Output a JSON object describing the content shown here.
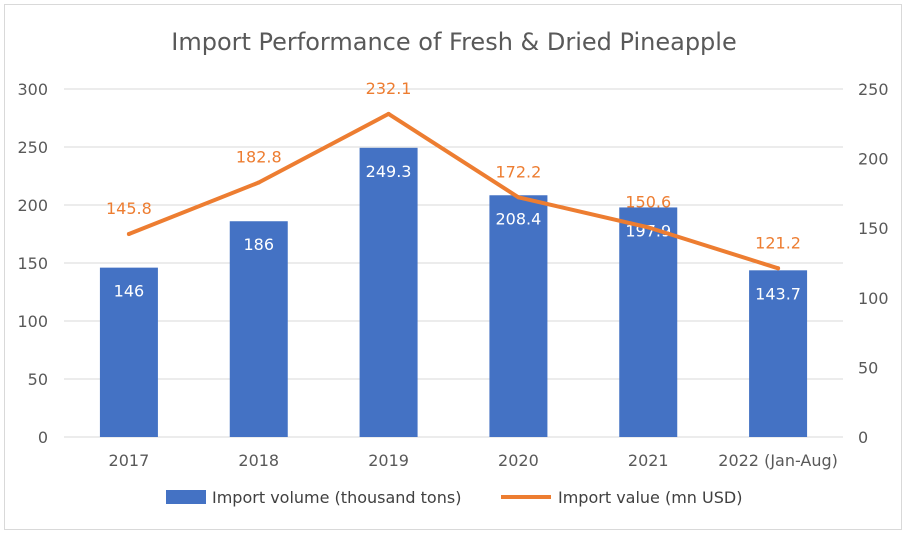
{
  "chart_data": {
    "type": "bar",
    "title": "Import Performance of Fresh & Dried Pineapple",
    "categories": [
      "2017",
      "2018",
      "2019",
      "2020",
      "2021",
      "2022 (Jan-Aug)"
    ],
    "series": [
      {
        "name": "Import volume (thousand tons)",
        "type": "bar",
        "axis": "left",
        "color": "#4472C4",
        "values": [
          146,
          186,
          249.3,
          208.4,
          197.9,
          143.7
        ],
        "labels": [
          "146",
          "186",
          "249.3",
          "208.4",
          "197.9",
          "143.7"
        ]
      },
      {
        "name": "Import value (mn USD)",
        "type": "line",
        "axis": "right",
        "color": "#ED7D31",
        "values": [
          145.8,
          182.8,
          232.1,
          172.2,
          150.6,
          121.2
        ],
        "labels": [
          "145.8",
          "182.8",
          "232.1",
          "172.2",
          "150.6",
          "121.2"
        ]
      }
    ],
    "y_left": {
      "min": 0,
      "max": 300,
      "step": 50,
      "ticks": [
        "0",
        "50",
        "100",
        "150",
        "200",
        "250",
        "300"
      ]
    },
    "y_right": {
      "min": 0,
      "max": 250,
      "step": 50,
      "ticks": [
        "0",
        "50",
        "100",
        "150",
        "200",
        "250"
      ]
    },
    "grid": true,
    "legend": "bottom"
  }
}
